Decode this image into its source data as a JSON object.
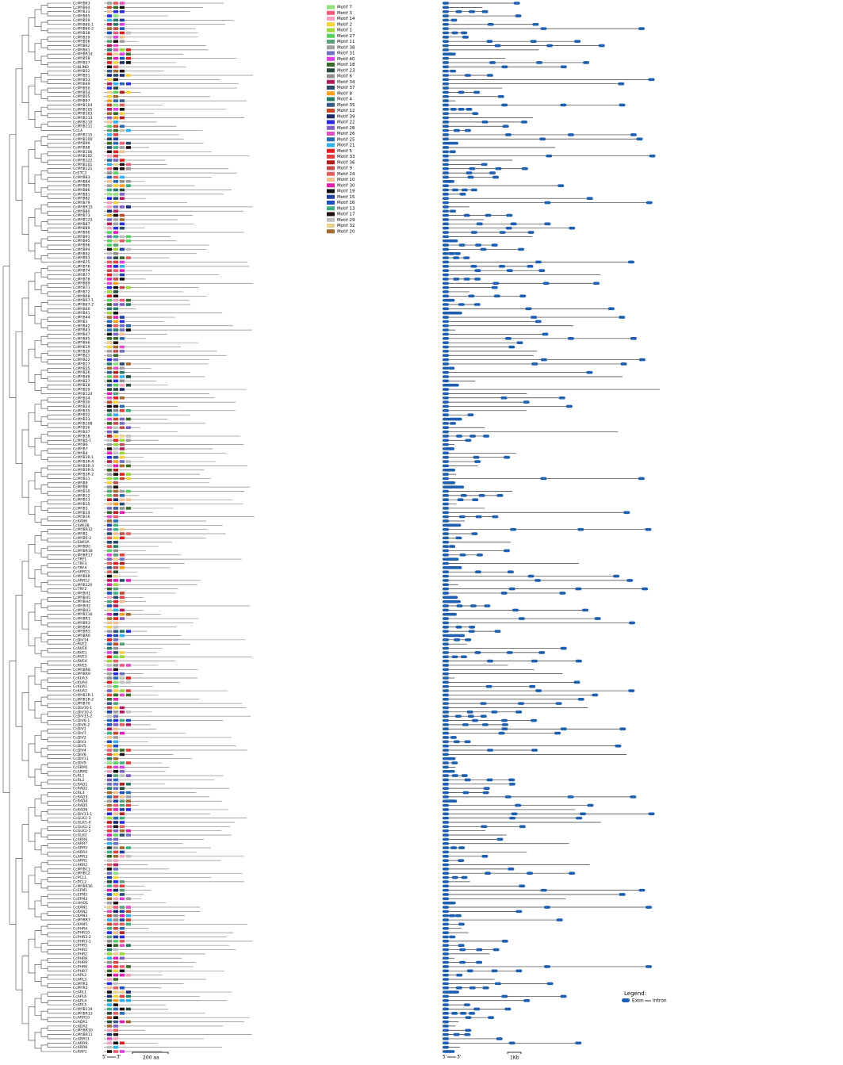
{
  "genes": [
    "CcMYB63",
    "CcMYB64",
    "CcMYB31",
    "CcMYB65",
    "CcMYB59",
    "CcMYB60-1",
    "CcMYB60-2",
    "CcMYB38",
    "CcMYB39",
    "CcMYB56",
    "CcMYB62",
    "CcMYB61",
    "CcMYBR14",
    "CcMYB58",
    "CcMYB57",
    "CcBLIND",
    "CcMYB52",
    "CcMYB51",
    "CcMYB53",
    "CcMYB49",
    "CcMYB50",
    "CcMYB54",
    "CcMYB55",
    "CcMYB97",
    "CcMYB104",
    "CcMYB105",
    "CcMYB103",
    "CcMYB113",
    "CcMYB110",
    "CcMYB111",
    "CcCA",
    "CcMYB115",
    "CcMYB100",
    "CcMYB99",
    "CcMYB98",
    "CcMYB106",
    "CcMYB102",
    "CcMYB122",
    "CcMYB101",
    "CcMYB121",
    "CcETC3",
    "CcMYB83",
    "CcMYB84",
    "CcMYB85",
    "CcMYB86",
    "CcMYB81",
    "CcMYB82",
    "CcMYB79",
    "CcMYBR15",
    "CcMYB80",
    "CcMYB73",
    "CcMYB123",
    "CcMYB87",
    "CcMYB89",
    "CcMYB90",
    "CcMYB91",
    "CcMYB95",
    "CcMYB96",
    "CcMYB94",
    "CcMYB92",
    "CcMYB93",
    "CcMYB75",
    "CcMYB76",
    "CcMYB74",
    "CcMYB77",
    "CcMYB78",
    "CcMYB69",
    "CcMYB71",
    "CcMYB72",
    "CcMYB68",
    "CcMYB67-1",
    "CcMYB67-2",
    "CcMYB40",
    "CcMYB41",
    "CcMYB44",
    "CcMYB1",
    "CcMYB42",
    "CcMYB43",
    "CcMYB47",
    "CcMYB45",
    "CcMYB46",
    "CcMYB19",
    "CcMYB20",
    "CcMYB21",
    "CcMYB22",
    "CcMYB17",
    "CcMYB25",
    "CcMYB26",
    "CcMYB48",
    "CcMYB27",
    "CcMYB28",
    "CcMYB29",
    "CcMYB124",
    "CcMYB34",
    "CcMYB30",
    "CcMYB24",
    "CcMYB35",
    "CcMYB32",
    "CcMYB33",
    "CcMYB108",
    "CcMYB36",
    "CcMYB37",
    "CcMYB18",
    "CcMYB5-1",
    "CcMYB6",
    "CcMYB7",
    "CcMYB4",
    "CcMYB3R-1",
    "CcMYB3R-4",
    "CcMYB3R-3",
    "CcMYB3R-5",
    "CcMYB3R-2",
    "CcMYB11",
    "CcMYB9",
    "CcMYB8",
    "CcMYB10",
    "CcMYB12",
    "CcMYB13",
    "CcMYB15",
    "CcMYB3",
    "CcMYB14",
    "CcMYB16",
    "CcKAN6",
    "CcSWI3B",
    "CcMYBR12",
    "CcMYB2",
    "CcMYB5-2",
    "CcSWI3A",
    "CcMYBDC",
    "CcMYBR18",
    "CcMYBR17",
    "CcTRF1",
    "CcTRF3",
    "CcTRF4",
    "CcARR13",
    "CcMYBSR",
    "CcARR12",
    "CcMYB120",
    "CcTRF2",
    "CcMYBH1",
    "CcMYBH5",
    "CcMYBH4",
    "CcMYBH2",
    "CcMYBH3",
    "CcMYB116",
    "CcMYBR1",
    "CcMYBR3",
    "CcMYBR4",
    "CcMYBR5",
    "CcMYBR6",
    "CcDIV14",
    "CcRVE2",
    "CcRVE6",
    "CcRVE1",
    "CcRVE3",
    "CcRVE4",
    "CcRVE5",
    "CcMYBR8",
    "CcMYBR9",
    "CcKUA3",
    "CcKUA4",
    "CcKUA1",
    "CcKUA2",
    "CcMYB1R-1",
    "CcMYB1R-2",
    "CcMYB70",
    "CcDIV10-1",
    "CcDIV10-2",
    "CcDIV13-2",
    "CcDIV6-1",
    "CcDIV6-2",
    "CcDIV1",
    "CcDIV7",
    "CcDIV2",
    "CcDIV3",
    "CcDIV5",
    "CcDIV4",
    "CcDIV8",
    "CcDIV11",
    "CcDIV9",
    "CcSRM1",
    "CcSRM2",
    "CcRL1",
    "CcRL2",
    "CcRAD1",
    "CcRAD2",
    "CcRL3",
    "CcRAD3",
    "CcRAD4",
    "CcRAD5",
    "CcRAD6",
    "CcDIV13-1",
    "CcGLK1-3",
    "CcGLK1-4",
    "CcGLK1-2",
    "CcGLK1-1",
    "CcGLK2",
    "CcARR6",
    "CcARR7",
    "CcARR5",
    "CcARR4",
    "CcARR3",
    "CcARR1",
    "CcARR2",
    "CcMYBC1",
    "CcMYBC2",
    "CcPCL1",
    "CcPCL2",
    "CcMYBR16",
    "CcEFM1",
    "CcEFM2",
    "CcEFM3",
    "CcHHO1",
    "CcKAN1",
    "CcKAN2",
    "CcKAN3",
    "CcMYBR7",
    "CcKAN5",
    "CcPHR4",
    "CcPHR10",
    "CcPHR3-2",
    "CcPHR3-1",
    "CcPHR5",
    "CcPHR1",
    "CcPHR2",
    "CcPHR8",
    "CcPHR9",
    "CcPHR6",
    "CcPHR7",
    "CcAPL2",
    "CcAPL3",
    "CcMYR1",
    "CcMYR2",
    "CcAPL1",
    "CcAPL6",
    "CcAPL4",
    "CcAPL5",
    "CcMYB119",
    "CcMYBR13",
    "CcARR10",
    "CcADA1",
    "CcADA2",
    "CcMYBR10",
    "CcMYBR11",
    "CcARR11",
    "CcARR9",
    "CcARR8",
    "CcRAP1"
  ],
  "motif_legend": [
    {
      "label": "Motif 7",
      "color": "#8fe07a"
    },
    {
      "label": "Motif 3",
      "color": "#f05a7a"
    },
    {
      "label": "Motif 14",
      "color": "#f4a0c0"
    },
    {
      "label": "Motif 2",
      "color": "#f5d23a"
    },
    {
      "label": "Motif 1",
      "color": "#9cd83a"
    },
    {
      "label": "Motif 27",
      "color": "#5ad060"
    },
    {
      "label": "Motif 11",
      "color": "#5aa07a"
    },
    {
      "label": "Motif 38",
      "color": "#a0a0a0"
    },
    {
      "label": "Motif 31",
      "color": "#7070c0"
    },
    {
      "label": "Motif 40",
      "color": "#e040e0"
    },
    {
      "label": "Motif 18",
      "color": "#3a6a2a"
    },
    {
      "label": "Motif 23",
      "color": "#2a4a3a"
    },
    {
      "label": "Motif 6",
      "color": "#909090"
    },
    {
      "label": "Motif 34",
      "color": "#b02060"
    },
    {
      "label": "Motif 37",
      "color": "#2a4a6a"
    },
    {
      "label": "Motif 8",
      "color": "#f5a020"
    },
    {
      "label": "Motif 4",
      "color": "#2a7a6a"
    },
    {
      "label": "Motif 35",
      "color": "#3a5a8a"
    },
    {
      "label": "Motif 12",
      "color": "#c04a2a"
    },
    {
      "label": "Motif 39",
      "color": "#1a2a6a"
    },
    {
      "label": "Motif 22",
      "color": "#2a2ae0"
    },
    {
      "label": "Motif 28",
      "color": "#8060c0"
    },
    {
      "label": "Motif 26",
      "color": "#e050c0"
    },
    {
      "label": "Motif 25",
      "color": "#2a6ab0"
    },
    {
      "label": "Motif 21",
      "color": "#30b0f0"
    },
    {
      "label": "Motif 5",
      "color": "#e02020"
    },
    {
      "label": "Motif 33",
      "color": "#e04040"
    },
    {
      "label": "Motif 36",
      "color": "#b02020"
    },
    {
      "label": "Motif 9",
      "color": "#c05050"
    },
    {
      "label": "Motif 24",
      "color": "#e06060"
    },
    {
      "label": "Motif 10",
      "color": "#f0c090"
    },
    {
      "label": "Motif 30",
      "color": "#e020b0"
    },
    {
      "label": "Motif 19",
      "color": "#101010"
    },
    {
      "label": "Motif 15",
      "color": "#2040a0"
    },
    {
      "label": "Motif 16",
      "color": "#2050c0"
    },
    {
      "label": "Motif 13",
      "color": "#40b080"
    },
    {
      "label": "Motif 17",
      "color": "#201010"
    },
    {
      "label": "Motif 29",
      "color": "#c0c0c0"
    },
    {
      "label": "Motif 32",
      "color": "#e8d090"
    },
    {
      "label": "Motif 20",
      "color": "#a06a30"
    }
  ],
  "gene_structure_legend": {
    "title": "Legend:",
    "exon": "Exon",
    "intron": "Intron"
  },
  "scale_bars": {
    "five_prime": "5'",
    "three_prime": "3'",
    "protein": "200 aa",
    "gene": "1Kb"
  }
}
